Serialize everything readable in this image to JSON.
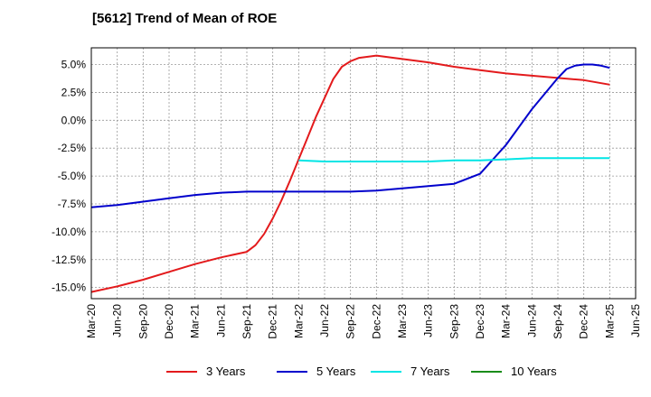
{
  "chart_data": {
    "type": "line",
    "title": "[5612]  Trend of Mean of ROE",
    "xlabel": "",
    "ylabel": "",
    "ylim": [
      -16.0,
      6.5
    ],
    "yticks": [
      5.0,
      2.5,
      0.0,
      -2.5,
      -5.0,
      -7.5,
      -10.0,
      -12.5,
      -15.0
    ],
    "ytick_labels": [
      "5.0%",
      "2.5%",
      "0.0%",
      "-2.5%",
      "-5.0%",
      "-7.5%",
      "-10.0%",
      "-12.5%",
      "-15.0%"
    ],
    "x_ticks": [
      "Mar-20",
      "Jun-20",
      "Sep-20",
      "Dec-20",
      "Mar-21",
      "Jun-21",
      "Sep-21",
      "Dec-21",
      "Mar-22",
      "Jun-22",
      "Sep-22",
      "Dec-22",
      "Mar-23",
      "Jun-23",
      "Sep-23",
      "Dec-23",
      "Mar-24",
      "Jun-24",
      "Sep-24",
      "Dec-24",
      "Mar-25",
      "Jun-25"
    ],
    "grid": true,
    "legend_position": "bottom",
    "series": [
      {
        "name": "3 Years",
        "color": "#e31a1c",
        "x": [
          "Mar-20",
          "Jun-20",
          "Sep-20",
          "Dec-20",
          "Mar-21",
          "Jun-21",
          "Sep-21",
          "Oct-21",
          "Nov-21",
          "Dec-21",
          "Jan-22",
          "Feb-22",
          "Mar-22",
          "Apr-22",
          "May-22",
          "Jun-22",
          "Jul-22",
          "Aug-22",
          "Sep-22",
          "Oct-22",
          "Nov-22",
          "Dec-22",
          "Jan-23",
          "Feb-23",
          "Mar-23",
          "Jun-23",
          "Sep-23",
          "Dec-23",
          "Mar-24",
          "Jun-24",
          "Sep-24",
          "Dec-24",
          "Mar-25"
        ],
        "values": [
          -15.4,
          -14.9,
          -14.3,
          -13.6,
          -12.9,
          -12.3,
          -11.8,
          -11.2,
          -10.2,
          -8.8,
          -7.2,
          -5.4,
          -3.5,
          -1.6,
          0.3,
          2.0,
          3.7,
          4.8,
          5.3,
          5.6,
          5.7,
          5.8,
          5.7,
          5.6,
          5.5,
          5.2,
          4.8,
          4.5,
          4.2,
          4.0,
          3.8,
          3.6,
          3.2
        ]
      },
      {
        "name": "5 Years",
        "color": "#0000cc",
        "x": [
          "Mar-20",
          "Jun-20",
          "Sep-20",
          "Dec-20",
          "Mar-21",
          "Jun-21",
          "Sep-21",
          "Dec-21",
          "Mar-22",
          "Jun-22",
          "Sep-22",
          "Dec-22",
          "Mar-23",
          "Jun-23",
          "Sep-23",
          "Dec-23",
          "Mar-24",
          "Jun-24",
          "Sep-24",
          "Oct-24",
          "Nov-24",
          "Dec-24",
          "Jan-25",
          "Feb-25",
          "Mar-25"
        ],
        "values": [
          -7.8,
          -7.6,
          -7.3,
          -7.0,
          -6.7,
          -6.5,
          -6.4,
          -6.4,
          -6.4,
          -6.4,
          -6.4,
          -6.3,
          -6.1,
          -5.9,
          -5.7,
          -4.8,
          -2.2,
          1.0,
          3.8,
          4.6,
          4.9,
          5.0,
          5.0,
          4.9,
          4.7
        ]
      },
      {
        "name": "7 Years",
        "color": "#00e5e5",
        "x": [
          "Mar-22",
          "Jun-22",
          "Sep-22",
          "Dec-22",
          "Mar-23",
          "Jun-23",
          "Sep-23",
          "Dec-23",
          "Mar-24",
          "Jun-24",
          "Sep-24",
          "Dec-24",
          "Mar-25"
        ],
        "values": [
          -3.6,
          -3.7,
          -3.7,
          -3.7,
          -3.7,
          -3.7,
          -3.6,
          -3.6,
          -3.5,
          -3.4,
          -3.4,
          -3.4,
          -3.4
        ]
      },
      {
        "name": "10 Years",
        "color": "#1a8c1a",
        "x": [],
        "values": []
      }
    ]
  }
}
